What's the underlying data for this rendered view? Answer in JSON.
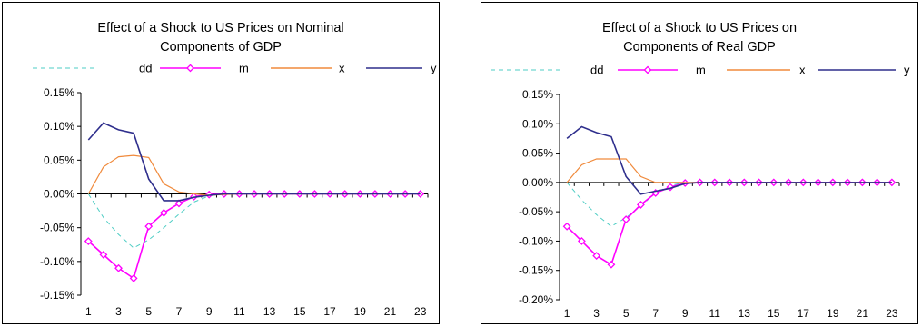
{
  "chart_data": [
    {
      "type": "line",
      "title": "Effect of a Shock to US Prices on Nominal\nComponents of GDP",
      "x": [
        1,
        2,
        3,
        4,
        5,
        6,
        7,
        8,
        9,
        10,
        11,
        12,
        13,
        14,
        15,
        16,
        17,
        18,
        19,
        20,
        21,
        22,
        23
      ],
      "x_tick_labels": [
        "1",
        "3",
        "5",
        "7",
        "9",
        "11",
        "13",
        "15",
        "17",
        "19",
        "21",
        "23"
      ],
      "y_tick_labels": [
        "0.15%",
        "0.10%",
        "0.05%",
        "0.00%",
        "-0.05%",
        "-0.10%",
        "-0.15%"
      ],
      "ylim": [
        -0.0015,
        0.0015
      ],
      "y_format": "percent",
      "grid": false,
      "legend_position": "top",
      "series": [
        {
          "name": "dd",
          "color": "#4ecdc4",
          "style": "dashed",
          "values": [
            0.0,
            -0.00035,
            -0.0006,
            -0.0008,
            -0.00068,
            -0.0005,
            -0.0003,
            -0.00012,
            -3e-05,
            0.0,
            0.0,
            0.0,
            0.0,
            0.0,
            0.0,
            0.0,
            0.0,
            0.0,
            0.0,
            0.0,
            0.0,
            0.0,
            0.0
          ]
        },
        {
          "name": "m",
          "color": "#ff00ff",
          "style": "solid-diamond",
          "values": [
            -0.0007,
            -0.0009,
            -0.0011,
            -0.00125,
            -0.00048,
            -0.00028,
            -0.00014,
            -4e-05,
            -1e-05,
            0.0,
            0.0,
            0.0,
            0.0,
            0.0,
            0.0,
            0.0,
            0.0,
            0.0,
            0.0,
            0.0,
            0.0,
            0.0,
            0.0
          ]
        },
        {
          "name": "x",
          "color": "#f08a3c",
          "style": "solid",
          "values": [
            0.0,
            0.0004,
            0.00055,
            0.00057,
            0.00054,
            0.00015,
            3e-05,
            0.0,
            -2e-05,
            -1e-05,
            0.0,
            0.0,
            0.0,
            0.0,
            0.0,
            0.0,
            0.0,
            0.0,
            0.0,
            0.0,
            0.0,
            0.0,
            0.0
          ]
        },
        {
          "name": "y",
          "color": "#2e2e8c",
          "style": "solid",
          "values": [
            0.0008,
            0.00105,
            0.00095,
            0.0009,
            0.00022,
            -0.0001,
            -0.0001,
            -5e-05,
            -2e-05,
            0.0,
            0.0,
            0.0,
            0.0,
            0.0,
            0.0,
            0.0,
            0.0,
            0.0,
            0.0,
            0.0,
            0.0,
            0.0,
            0.0
          ]
        }
      ]
    },
    {
      "type": "line",
      "title": "Effect of a Shock to US Prices on\nComponents of Real GDP",
      "x": [
        1,
        2,
        3,
        4,
        5,
        6,
        7,
        8,
        9,
        10,
        11,
        12,
        13,
        14,
        15,
        16,
        17,
        18,
        19,
        20,
        21,
        22,
        23
      ],
      "x_tick_labels": [
        "1",
        "3",
        "5",
        "7",
        "9",
        "11",
        "13",
        "15",
        "17",
        "19",
        "21",
        "23"
      ],
      "y_tick_labels": [
        "0.15%",
        "0.10%",
        "0.05%",
        "0.00%",
        "-0.05%",
        "-0.10%",
        "-0.15%",
        "-0.20%"
      ],
      "ylim": [
        -0.002,
        0.0015
      ],
      "y_format": "percent",
      "grid": false,
      "legend_position": "top",
      "series": [
        {
          "name": "dd",
          "color": "#4ecdc4",
          "style": "dashed",
          "values": [
            0.0,
            -0.0003,
            -0.00055,
            -0.00075,
            -0.0006,
            -0.0004,
            -0.00018,
            -5e-05,
            0.0,
            0.0,
            0.0,
            0.0,
            0.0,
            0.0,
            0.0,
            0.0,
            0.0,
            0.0,
            0.0,
            0.0,
            0.0,
            0.0,
            0.0
          ]
        },
        {
          "name": "m",
          "color": "#ff00ff",
          "style": "solid-diamond",
          "values": [
            -0.00075,
            -0.001,
            -0.00125,
            -0.0014,
            -0.00063,
            -0.00038,
            -0.00018,
            -8e-05,
            -1e-05,
            0.0,
            0.0,
            0.0,
            0.0,
            0.0,
            0.0,
            0.0,
            0.0,
            0.0,
            0.0,
            0.0,
            0.0,
            0.0,
            0.0
          ]
        },
        {
          "name": "x",
          "color": "#f08a3c",
          "style": "solid",
          "values": [
            0.0,
            0.0003,
            0.0004,
            0.0004,
            0.0004,
            0.0001,
            0.0,
            0.0,
            0.0,
            0.0,
            0.0,
            0.0,
            0.0,
            0.0,
            0.0,
            0.0,
            0.0,
            0.0,
            0.0,
            0.0,
            0.0,
            0.0,
            0.0
          ]
        },
        {
          "name": "y",
          "color": "#2e2e8c",
          "style": "solid",
          "values": [
            0.00075,
            0.00095,
            0.00085,
            0.00078,
            0.0001,
            -0.0002,
            -0.00015,
            -0.0001,
            -2e-05,
            0.0,
            0.0,
            0.0,
            0.0,
            0.0,
            0.0,
            0.0,
            0.0,
            0.0,
            0.0,
            0.0,
            0.0,
            0.0,
            0.0
          ]
        }
      ]
    }
  ]
}
